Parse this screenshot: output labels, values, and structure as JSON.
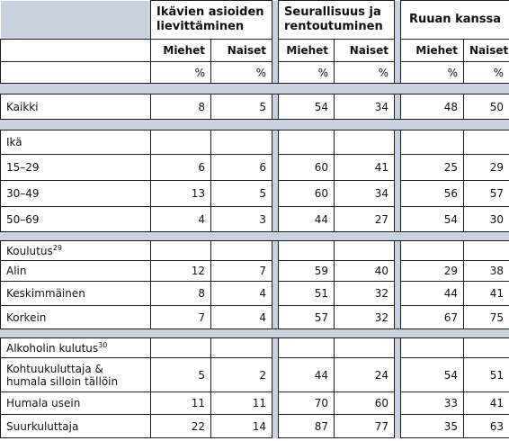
{
  "groups": {
    "g1": "Ikävien asioiden lievittäminen",
    "g1a": "Ikävien asioiden",
    "g1b": "lievittäminen",
    "g2a": "Seurallisuus ja",
    "g2b": "rentoutuminen",
    "g3": "Ruuan kanssa"
  },
  "cols": {
    "men": "Miehet",
    "women": "Naiset",
    "pct": "%"
  },
  "rows": {
    "kaikki": {
      "label": "Kaikki",
      "v": [
        "8",
        "5",
        "54",
        "34",
        "48",
        "50"
      ]
    },
    "ika": {
      "label": "Ikä"
    },
    "r1529": {
      "label": "15–29",
      "v": [
        "6",
        "6",
        "60",
        "41",
        "25",
        "29"
      ]
    },
    "r3049": {
      "label": "30–49",
      "v": [
        "13",
        "5",
        "60",
        "34",
        "56",
        "57"
      ]
    },
    "r5069": {
      "label": "50–69",
      "v": [
        "4",
        "3",
        "44",
        "27",
        "54",
        "30"
      ]
    },
    "koulutus": {
      "label": "Koulutus",
      "sup": "29"
    },
    "alin": {
      "label": "Alin",
      "v": [
        "12",
        "7",
        "59",
        "40",
        "29",
        "38"
      ]
    },
    "keski": {
      "label": "Keskimmäinen",
      "v": [
        "8",
        "4",
        "51",
        "32",
        "44",
        "41"
      ]
    },
    "korkein": {
      "label": "Korkein",
      "v": [
        "7",
        "4",
        "57",
        "32",
        "67",
        "75"
      ]
    },
    "alko": {
      "label": "Alkoholin kulutus",
      "sup": "30"
    },
    "kohtuu": {
      "label_a": "Kohtuukuluttaja &",
      "label_b": "humala silloin tällöin",
      "v": [
        "5",
        "2",
        "44",
        "24",
        "54",
        "51"
      ]
    },
    "humala": {
      "label": "Humala usein",
      "v": [
        "11",
        "11",
        "70",
        "60",
        "33",
        "41"
      ]
    },
    "suur": {
      "label": "Suurkuluttaja",
      "v": [
        "22",
        "14",
        "87",
        "77",
        "35",
        "63"
      ]
    }
  }
}
